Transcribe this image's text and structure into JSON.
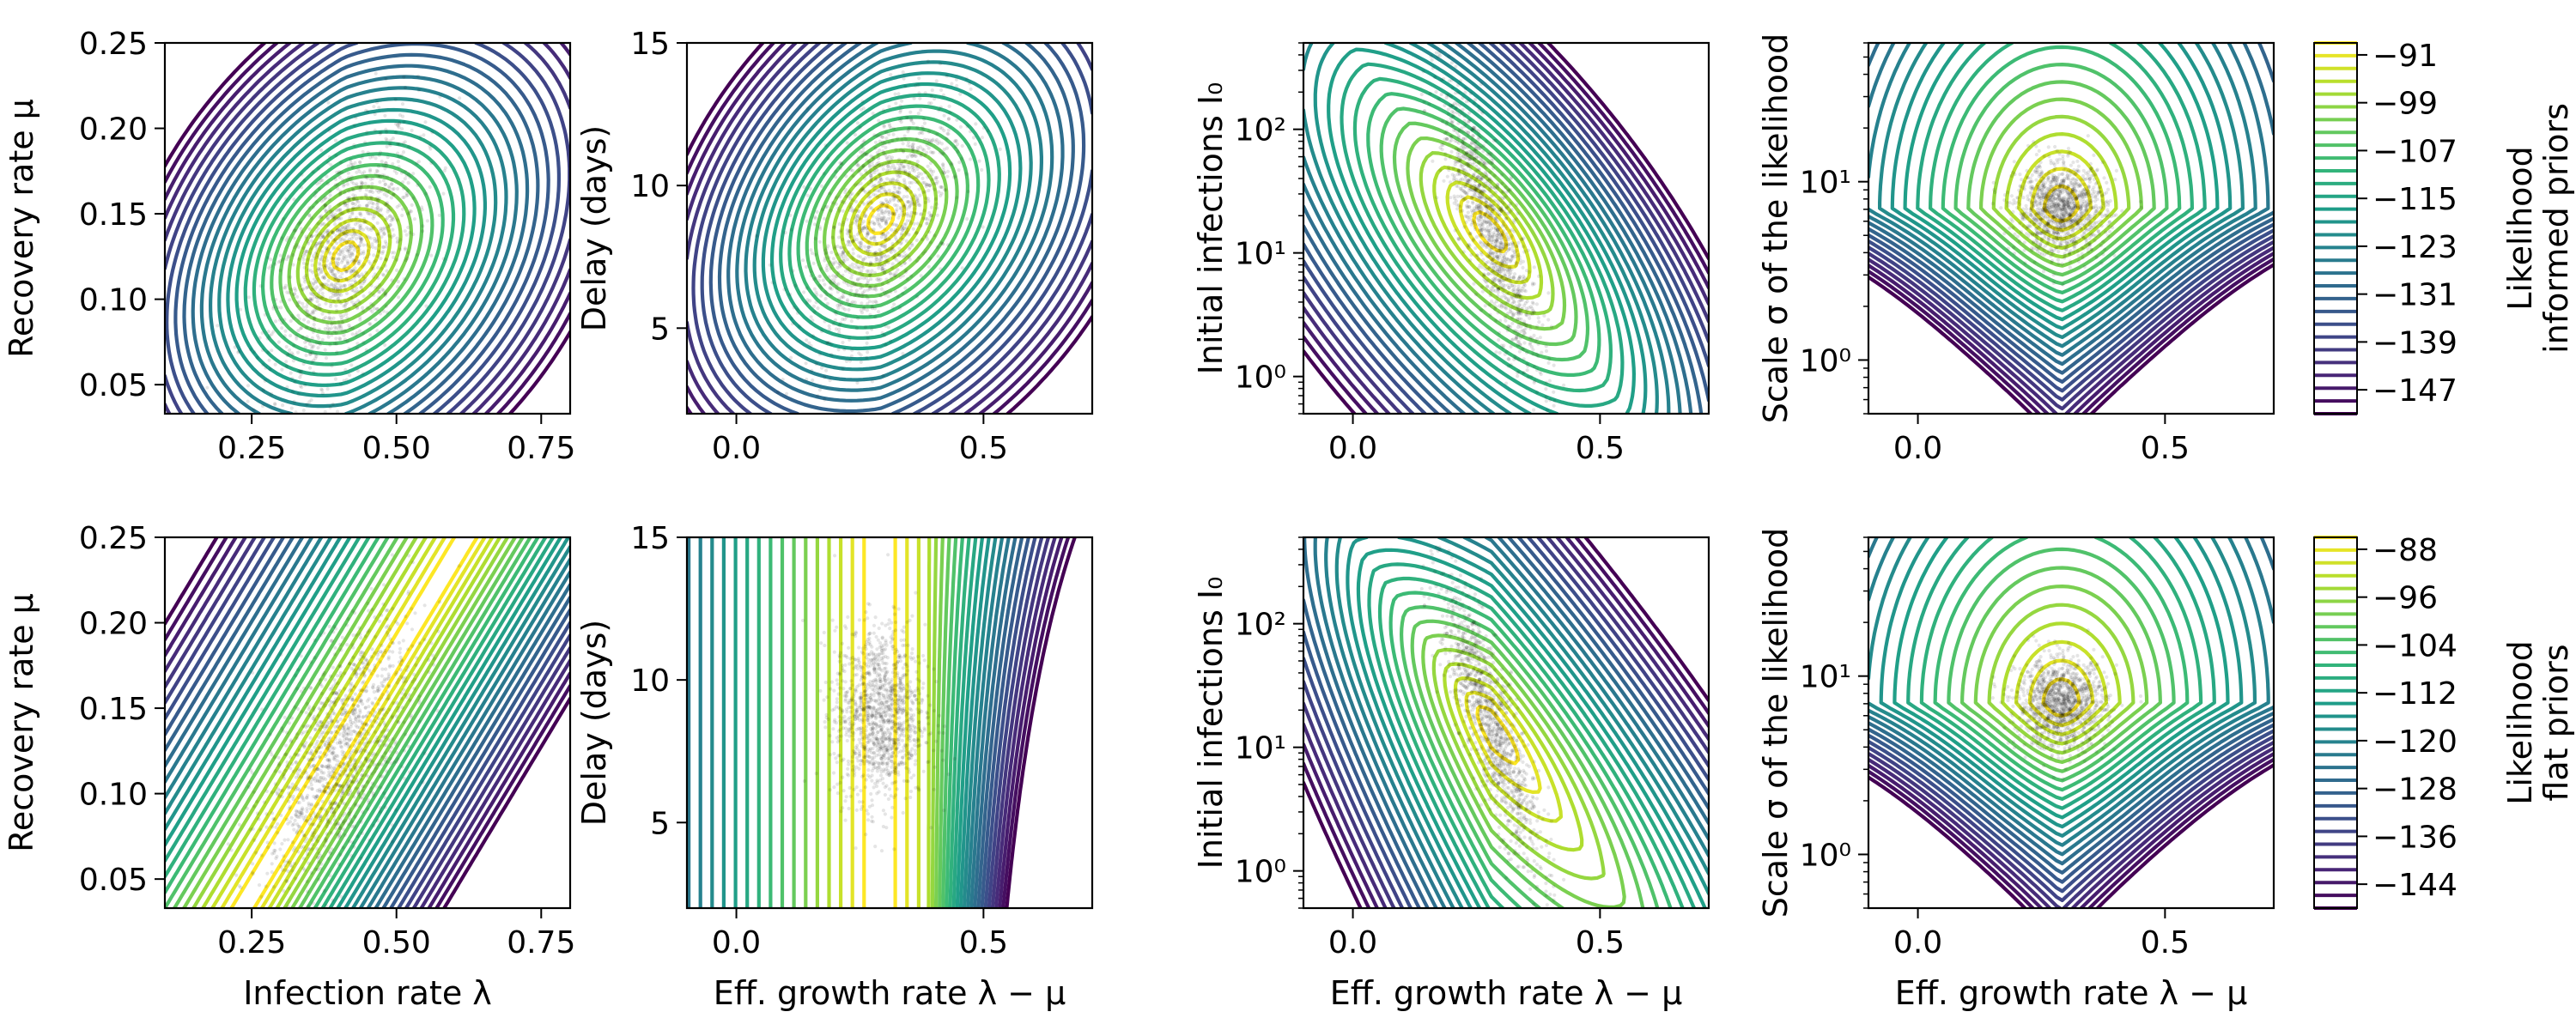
{
  "figure": {
    "panels": [
      {
        "id": "r1c1",
        "ylabel": "Recovery rate μ",
        "xlabel": "",
        "xlim": [
          0.1,
          0.8
        ],
        "ylim": [
          0.033,
          0.25
        ],
        "yscale": "linear",
        "xticks": [
          0.25,
          0.5,
          0.75
        ],
        "xticklabels": [
          "0.25",
          "0.50",
          "0.75"
        ],
        "yticks": [
          0.05,
          0.1,
          0.15,
          0.2,
          0.25
        ],
        "yticklabels": [
          "0.05",
          "0.10",
          "0.15",
          "0.20",
          "0.25"
        ],
        "contours": "informed-elliptic",
        "center": [
          0.41,
          0.125
        ],
        "spread": [
          0.07,
          0.025
        ]
      },
      {
        "id": "r1c2",
        "ylabel": "Delay (days)",
        "xlabel": "",
        "xlim": [
          -0.1,
          0.72
        ],
        "ylim": [
          2,
          15
        ],
        "yscale": "linear",
        "xticks": [
          0.0,
          0.5
        ],
        "xticklabels": [
          "0.0",
          "0.5"
        ],
        "yticks": [
          5,
          10,
          15
        ],
        "yticklabels": [
          "5",
          "10",
          "15"
        ],
        "contours": "informed-elliptic",
        "center": [
          0.29,
          8.8
        ],
        "spread": [
          0.035,
          1.6
        ]
      },
      {
        "id": "r1c3",
        "ylabel": "Initial infections I₀",
        "xlabel": "",
        "xlim": [
          -0.1,
          0.72
        ],
        "ylim": [
          0.5,
          500
        ],
        "yscale": "log",
        "xticks": [
          0.0,
          0.5
        ],
        "xticklabels": [
          "0.0",
          "0.5"
        ],
        "yticks": [
          1,
          10,
          100
        ],
        "yticklabels": [
          "10⁰",
          "10¹",
          "10²"
        ],
        "contours": "informed-diagonal",
        "center": [
          0.28,
          15
        ],
        "spread": [
          0.03,
          0.35
        ]
      },
      {
        "id": "r1c4",
        "ylabel": "Scale σ of the likelihood",
        "xlabel": "",
        "xlim": [
          -0.1,
          0.72
        ],
        "ylim": [
          0.5,
          60
        ],
        "yscale": "log",
        "xticks": [
          0.0,
          0.5
        ],
        "xticklabels": [
          "0.0",
          "0.5"
        ],
        "yticks": [
          1,
          10
        ],
        "yticklabels": [
          "10⁰",
          "10¹"
        ],
        "contours": "informed-valley",
        "center": [
          0.29,
          7
        ],
        "spread": [
          0.035,
          0.15
        ]
      },
      {
        "id": "r2c1",
        "ylabel": "Recovery rate μ",
        "xlabel": "Infection rate λ",
        "xlim": [
          0.1,
          0.8
        ],
        "ylim": [
          0.033,
          0.25
        ],
        "yscale": "linear",
        "xticks": [
          0.25,
          0.5,
          0.75
        ],
        "xticklabels": [
          "0.25",
          "0.50",
          "0.75"
        ],
        "yticks": [
          0.05,
          0.1,
          0.15,
          0.2,
          0.25
        ],
        "yticklabels": [
          "0.05",
          "0.10",
          "0.15",
          "0.20",
          "0.25"
        ],
        "contours": "flat-slanted",
        "center": [
          0.4,
          0.125
        ],
        "spread": [
          0.07,
          0.028
        ]
      },
      {
        "id": "r2c2",
        "ylabel": "Delay (days)",
        "xlabel": "Eff. growth rate λ − μ",
        "xlim": [
          -0.1,
          0.72
        ],
        "ylim": [
          2,
          15
        ],
        "yscale": "linear",
        "xticks": [
          0.0,
          0.5
        ],
        "xticklabels": [
          "0.0",
          "0.5"
        ],
        "yticks": [
          5,
          10,
          15
        ],
        "yticklabels": [
          "5",
          "10",
          "15"
        ],
        "contours": "flat-vertical",
        "center": [
          0.29,
          8.8
        ],
        "spread": [
          0.035,
          1.7
        ]
      },
      {
        "id": "r2c3",
        "ylabel": "Initial infections I₀",
        "xlabel": "Eff. growth rate λ − μ",
        "xlim": [
          -0.1,
          0.72
        ],
        "ylim": [
          0.5,
          500
        ],
        "yscale": "log",
        "xticks": [
          0.0,
          0.5
        ],
        "xticklabels": [
          "0.0",
          "0.5"
        ],
        "yticks": [
          1,
          10,
          100
        ],
        "yticklabels": [
          "10⁰",
          "10¹",
          "10²"
        ],
        "contours": "flat-diagonal",
        "center": [
          0.28,
          15
        ],
        "spread": [
          0.03,
          0.4
        ]
      },
      {
        "id": "r2c4",
        "ylabel": "Scale σ of the likelihood",
        "xlabel": "Eff. growth rate λ − μ",
        "xlim": [
          -0.1,
          0.72
        ],
        "ylim": [
          0.5,
          60
        ],
        "yscale": "log",
        "xticks": [
          0.0,
          0.5
        ],
        "xticklabels": [
          "0.0",
          "0.5"
        ],
        "yticks": [
          1,
          10
        ],
        "yticklabels": [
          "10⁰",
          "10¹"
        ],
        "contours": "flat-valley",
        "center": [
          0.29,
          7
        ],
        "spread": [
          0.035,
          0.15
        ]
      }
    ],
    "colorbars": [
      {
        "label": "Likelihood\ninformed priors",
        "ticks": [
          -91,
          -99,
          -107,
          -115,
          -123,
          -131,
          -139,
          -147
        ],
        "ticklabels": [
          "−91",
          "−99",
          "−107",
          "−115",
          "−123",
          "−131",
          "−139",
          "−147"
        ],
        "vmax": -89,
        "vmin": -151
      },
      {
        "label": "Likelihood\nflat priors",
        "ticks": [
          -88,
          -96,
          -104,
          -112,
          -120,
          -128,
          -136,
          -144
        ],
        "ticklabels": [
          "−88",
          "−96",
          "−104",
          "−112",
          "−120",
          "−128",
          "−136",
          "−144"
        ],
        "vmax": -86,
        "vmin": -148
      }
    ],
    "colormap": "viridis",
    "colors": {
      "viridis_dark": "#440154",
      "viridis_mid": "#21918c",
      "viridis_light": "#fde725",
      "scatter": "#000000"
    }
  },
  "chart_data": {
    "type": "contour+scatter",
    "title": "",
    "colormap": "viridis",
    "panels": [
      {
        "row": 1,
        "col": 1,
        "xlabel": "",
        "ylabel": "Recovery rate μ",
        "xlim": [
          0.1,
          0.8
        ],
        "ylim": [
          0.033,
          0.25
        ],
        "posterior_center": [
          0.41,
          0.125
        ]
      },
      {
        "row": 1,
        "col": 2,
        "xlabel": "",
        "ylabel": "Delay (days)",
        "xlim": [
          -0.1,
          0.72
        ],
        "ylim": [
          2,
          15
        ],
        "posterior_center": [
          0.29,
          8.8
        ]
      },
      {
        "row": 1,
        "col": 3,
        "xlabel": "",
        "ylabel": "Initial infections I₀",
        "xlim": [
          -0.1,
          0.72
        ],
        "ylim": [
          0.5,
          500
        ],
        "yscale": "log",
        "posterior_center": [
          0.28,
          15
        ]
      },
      {
        "row": 1,
        "col": 4,
        "xlabel": "",
        "ylabel": "Scale σ of the likelihood",
        "xlim": [
          -0.1,
          0.72
        ],
        "ylim": [
          0.5,
          60
        ],
        "yscale": "log",
        "posterior_center": [
          0.29,
          7
        ]
      },
      {
        "row": 2,
        "col": 1,
        "xlabel": "Infection rate λ",
        "ylabel": "Recovery rate μ",
        "xlim": [
          0.1,
          0.8
        ],
        "ylim": [
          0.033,
          0.25
        ],
        "posterior_center": [
          0.4,
          0.125
        ]
      },
      {
        "row": 2,
        "col": 2,
        "xlabel": "Eff. growth rate λ − μ",
        "ylabel": "Delay (days)",
        "xlim": [
          -0.1,
          0.72
        ],
        "ylim": [
          2,
          15
        ],
        "posterior_center": [
          0.29,
          8.8
        ]
      },
      {
        "row": 2,
        "col": 3,
        "xlabel": "Eff. growth rate λ − μ",
        "ylabel": "Initial infections I₀",
        "xlim": [
          -0.1,
          0.72
        ],
        "ylim": [
          0.5,
          500
        ],
        "yscale": "log",
        "posterior_center": [
          0.28,
          15
        ]
      },
      {
        "row": 2,
        "col": 4,
        "xlabel": "Eff. growth rate λ − μ",
        "ylabel": "Scale σ of the likelihood",
        "xlim": [
          -0.1,
          0.72
        ],
        "ylim": [
          0.5,
          60
        ],
        "yscale": "log",
        "posterior_center": [
          0.29,
          7
        ]
      }
    ],
    "colorbars": [
      {
        "label": "Likelihood informed priors",
        "ticks": [
          -91,
          -99,
          -107,
          -115,
          -123,
          -131,
          -139,
          -147
        ]
      },
      {
        "label": "Likelihood flat priors",
        "ticks": [
          -88,
          -96,
          -104,
          -112,
          -120,
          -128,
          -136,
          -144
        ]
      }
    ]
  }
}
